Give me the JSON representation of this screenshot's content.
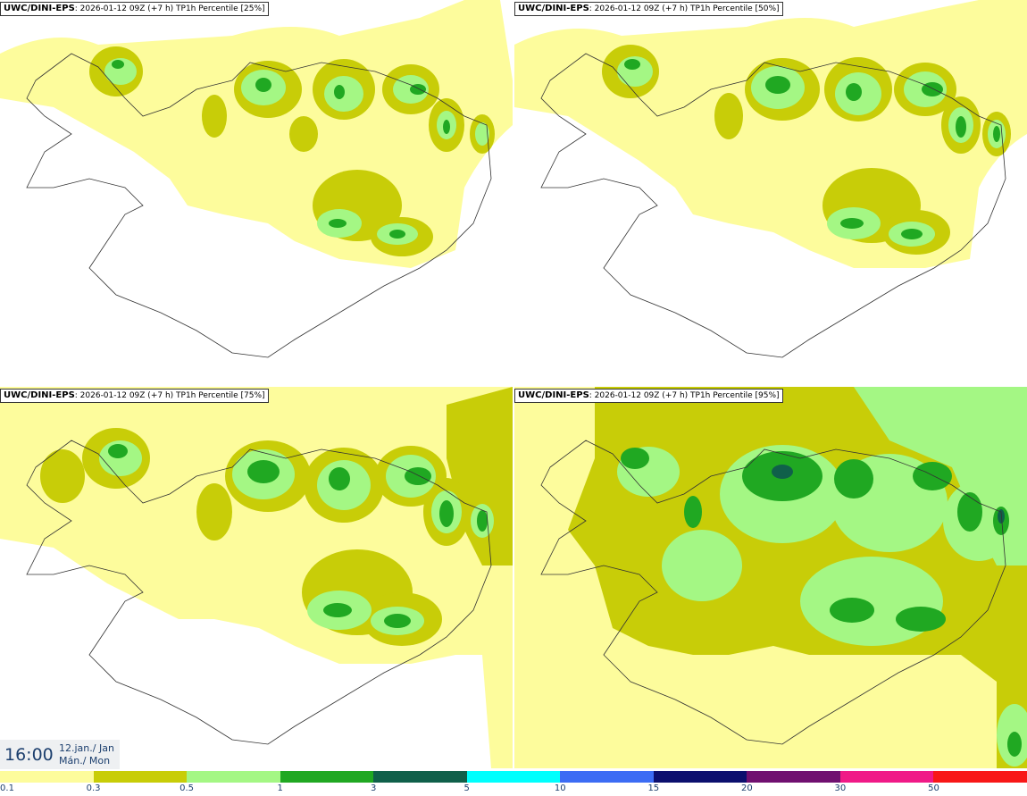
{
  "panels": [
    {
      "source": "UWC/DINI-EPS",
      "run": ": 2026-01-12 09Z (+7 h)",
      "field": " TP1h Percentile [25%]"
    },
    {
      "source": "UWC/DINI-EPS",
      "run": ": 2026-01-12 09Z (+7 h)",
      "field": " TP1h Percentile [50%]"
    },
    {
      "source": "UWC/DINI-EPS",
      "run": ": 2026-01-12 09Z (+7 h)",
      "field": " TP1h Percentile [75%]"
    },
    {
      "source": "UWC/DINI-EPS",
      "run": ": 2026-01-12 09Z (+7 h)",
      "field": " TP1h Percentile [95%]"
    }
  ],
  "valid_time": {
    "time": "16:00",
    "date_line": "12.jan./ Jan",
    "day_line": "Mán./ Mon"
  },
  "legend": {
    "colors": [
      "#fdfc9c",
      "#c8cd08",
      "#a4f784",
      "#20a822",
      "#10604a",
      "#00fffd",
      "#3c6cf4",
      "#0c0f6e",
      "#701070",
      "#f01a87",
      "#f81818"
    ],
    "tick_labels": [
      "0.1",
      "0.3",
      "0.5",
      "1",
      "3",
      "5",
      "10",
      "15",
      "20",
      "30",
      "50"
    ]
  }
}
